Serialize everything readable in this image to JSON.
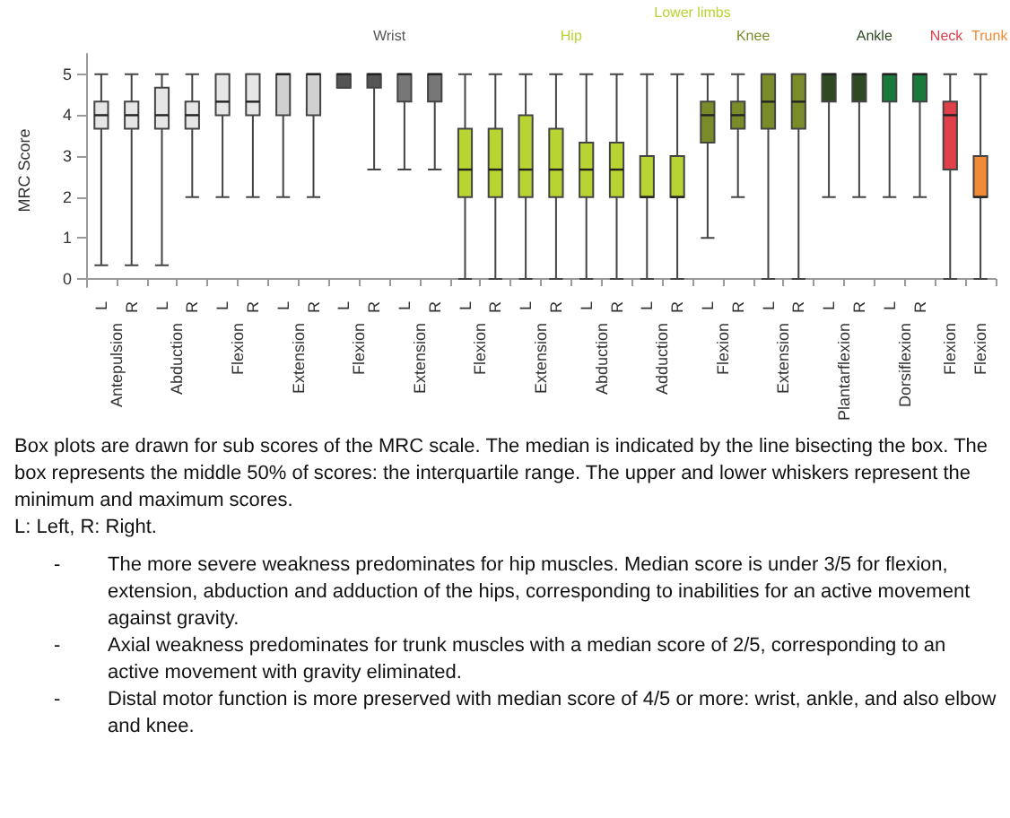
{
  "chart_data": {
    "type": "box",
    "ylabel": "MRC Score",
    "categories": [
      "L",
      "R",
      "L",
      "R",
      "L",
      "R",
      "L",
      "R",
      "L",
      "R",
      "L",
      "R",
      "L",
      "R",
      "L",
      "R",
      "L",
      "R",
      "L",
      "R",
      "L",
      "R",
      "L",
      "R",
      "L",
      "R",
      "L",
      "R",
      null,
      null
    ],
    "boxes": [
      {
        "low": 0.33,
        "q1": 3.67,
        "median": 4,
        "q3": 4.33,
        "high": 5
      },
      {
        "low": 0.33,
        "q1": 3.67,
        "median": 4,
        "q3": 4.33,
        "high": 5
      },
      {
        "low": 0.33,
        "q1": 3.67,
        "median": 4,
        "q3": 4.67,
        "high": 5
      },
      {
        "low": 2,
        "q1": 3.67,
        "median": 4,
        "q3": 4.33,
        "high": 5
      },
      {
        "low": 2,
        "q1": 4,
        "median": 4.33,
        "q3": 5,
        "high": 5
      },
      {
        "low": 2,
        "q1": 4,
        "median": 4.33,
        "q3": 5,
        "high": 5
      },
      {
        "low": 2,
        "q1": 4,
        "median": 5,
        "q3": 5,
        "high": 5
      },
      {
        "low": 2,
        "q1": 4,
        "median": 5,
        "q3": 5,
        "high": 5
      },
      {
        "low": 4.67,
        "q1": 4.67,
        "median": 5,
        "q3": 5,
        "high": 5
      },
      {
        "low": 2.67,
        "q1": 4.67,
        "median": 5,
        "q3": 5,
        "high": 5
      },
      {
        "low": 2.67,
        "q1": 4.33,
        "median": 5,
        "q3": 5,
        "high": 5
      },
      {
        "low": 2.67,
        "q1": 4.33,
        "median": 5,
        "q3": 5,
        "high": 5
      },
      {
        "low": 0,
        "q1": 2,
        "median": 2.67,
        "q3": 3.67,
        "high": 5
      },
      {
        "low": 0,
        "q1": 2,
        "median": 2.67,
        "q3": 3.67,
        "high": 5
      },
      {
        "low": 0,
        "q1": 2,
        "median": 2.67,
        "q3": 4,
        "high": 5
      },
      {
        "low": 0,
        "q1": 2,
        "median": 2.67,
        "q3": 3.67,
        "high": 5
      },
      {
        "low": 0,
        "q1": 2,
        "median": 2.67,
        "q3": 3.33,
        "high": 5
      },
      {
        "low": 0,
        "q1": 2,
        "median": 2.67,
        "q3": 3.33,
        "high": 5
      },
      {
        "low": 0,
        "q1": 2,
        "median": 2,
        "q3": 3,
        "high": 5
      },
      {
        "low": 0,
        "q1": 2,
        "median": 2,
        "q3": 3,
        "high": 5
      },
      {
        "low": 1,
        "q1": 3.33,
        "median": 4,
        "q3": 4.33,
        "high": 5
      },
      {
        "low": 2,
        "q1": 3.67,
        "median": 4,
        "q3": 4.33,
        "high": 5
      },
      {
        "low": 0,
        "q1": 3.67,
        "median": 4.33,
        "q3": 5,
        "high": 5
      },
      {
        "low": 0,
        "q1": 3.67,
        "median": 4.33,
        "q3": 5,
        "high": 5
      },
      {
        "low": 2,
        "q1": 4.33,
        "median": 5,
        "q3": 5,
        "high": 5
      },
      {
        "low": 2,
        "q1": 4.33,
        "median": 5,
        "q3": 5,
        "high": 5
      },
      {
        "low": 2,
        "q1": 4.33,
        "median": 5,
        "q3": 5,
        "high": 5
      },
      {
        "low": 2,
        "q1": 4.33,
        "median": 5,
        "q3": 5,
        "high": 5
      },
      {
        "low": 0,
        "q1": 2.67,
        "median": 4,
        "q3": 4.33,
        "high": 5
      },
      {
        "low": 0,
        "q1": 2,
        "median": 2,
        "q3": 3,
        "high": 5
      }
    ],
    "colors": [
      "#e6e6e6",
      "#e6e6e6",
      "#e6e6e6",
      "#e6e6e6",
      "#e6e6e6",
      "#e6e6e6",
      "#d0d0d0",
      "#d0d0d0",
      "#555555",
      "#555555",
      "#777777",
      "#777777",
      "#b8d432",
      "#b8d432",
      "#b8d432",
      "#b8d432",
      "#b8d432",
      "#b8d432",
      "#b8d432",
      "#b8d432",
      "#7a8c2a",
      "#7a8c2a",
      "#7a8c2a",
      "#7a8c2a",
      "#2e4a22",
      "#2e4a22",
      "#1a7a3c",
      "#1a7a3c",
      "#e0404a",
      "#f08a34"
    ],
    "ylim": [
      -0.2,
      5.5
    ],
    "yticks": [
      0,
      1,
      2,
      3,
      4,
      5
    ],
    "grid": false,
    "annotations": [
      "Antepulsion",
      "Abduction",
      "Flexion",
      "Extension",
      "Flexion",
      "Extension",
      "Flexion",
      "Extension",
      "Abduction",
      "Adduction",
      "Flexion",
      "Extension",
      "Plantarflexion",
      "Dorsiflexion",
      "Flexion",
      "Flexion",
      "Wrist",
      "Lower limbs",
      "Hip",
      "Knee",
      "Ankle",
      "Neck",
      "Trunk",
      "Box plots are drawn for sub scores of the MRC scale. The median is indicated by the line bisecting the box. The box represents the middle 50% of scores: the interquartile range. The upper and lower whiskers represent the minimum and maximum scores.",
      "L: Left, R: Right.",
      "-",
      "The more severe weakness predominates for hip muscles. Median score is under 3/5 for flexion, extension, abduction and adduction of the hips, corresponding to inabilities for an active movement against gravity.",
      "-",
      "Axial weakness predominates for trunk muscles with a median score of 2/5, corresponding to an active movement with gravity eliminated.",
      "-",
      "Distal motor function is more preserved with median score of 4/5 or more: wrist, ankle, and also elbow and knee."
    ]
  }
}
